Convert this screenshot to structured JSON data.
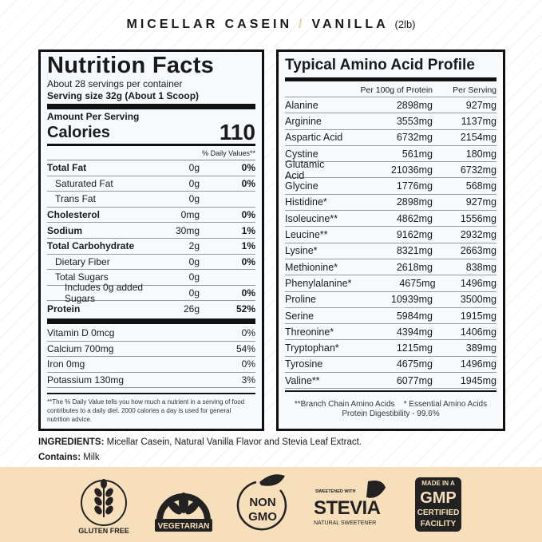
{
  "header": {
    "product": "MICELLAR CASEIN",
    "separator": "/",
    "flavor": "VANILLA",
    "size": "(2lb)"
  },
  "nutrition": {
    "title": "Nutrition Facts",
    "servings": "About 28 servings per container",
    "serving_size": "Serving size 32g (About 1 Scoop)",
    "amount_per_serving": "Amount Per Serving",
    "calories_label": "Calories",
    "calories": "110",
    "dv_header": "% Daily Values**",
    "rows": [
      {
        "name": "Total Fat",
        "amount": "0g",
        "dv": "0%",
        "bold": true
      },
      {
        "name": "Saturated Fat",
        "amount": "0g",
        "dv": "0%",
        "indent": true
      },
      {
        "name": "Trans Fat",
        "amount": "0g",
        "dv": "",
        "indent": true
      },
      {
        "name": "Cholesterol",
        "amount": "0mg",
        "dv": "0%",
        "bold": true
      },
      {
        "name": "Sodium",
        "amount": "30mg",
        "dv": "1%",
        "bold": true
      },
      {
        "name": "Total Carbohydrate",
        "amount": "2g",
        "dv": "1%",
        "bold": true
      },
      {
        "name": "Dietary Fiber",
        "amount": "0g",
        "dv": "0%",
        "indent": true
      },
      {
        "name": "Total Sugars",
        "amount": "0g",
        "dv": "",
        "indent": true
      },
      {
        "name": "Includes 0g added Sugars",
        "amount": "0g",
        "dv": "0%",
        "indent": 2
      },
      {
        "name": "Protein",
        "amount": "26g",
        "dv": "52%",
        "bold": true
      }
    ],
    "vitamins": [
      {
        "name": "Vitamin D 0mcg",
        "dv": "0%"
      },
      {
        "name": "Calcium 700mg",
        "dv": "54%"
      },
      {
        "name": "Iron 0mg",
        "dv": "0%"
      },
      {
        "name": "Potassium 130mg",
        "dv": "3%"
      }
    ],
    "footnote": "**The % Daily Value tells you how much a nutrient in a  serving of food contributes to a daily diet. 2000 calories a day is used for general nutrition advice."
  },
  "amino": {
    "title": "Typical Amino Acid Profile",
    "col1": "Per 100g of Protein",
    "col2": "Per Serving",
    "rows": [
      [
        "Alanine",
        "2898mg",
        "927mg"
      ],
      [
        "Arginine",
        "3553mg",
        "1137mg"
      ],
      [
        "Aspartic Acid",
        "6732mg",
        "2154mg"
      ],
      [
        "Cystine",
        "561mg",
        "180mg"
      ],
      [
        "Glutamic Acid",
        "21036mg",
        "6732mg"
      ],
      [
        "Glycine",
        "1776mg",
        "568mg"
      ],
      [
        "Histidine*",
        "2898mg",
        "927mg"
      ],
      [
        "Isoleucine**",
        "4862mg",
        "1556mg"
      ],
      [
        "Leucine**",
        "9162mg",
        "2932mg"
      ],
      [
        "Lysine*",
        "8321mg",
        "2663mg"
      ],
      [
        "Methionine*",
        "2618mg",
        "838mg"
      ],
      [
        "Phenylalanine*",
        "4675mg",
        "1496mg"
      ],
      [
        "Proline",
        "10939mg",
        "3500mg"
      ],
      [
        "Serine",
        "5984mg",
        "1915mg"
      ],
      [
        "Threonine*",
        "4394mg",
        "1406mg"
      ],
      [
        "Tryptophan*",
        "1215mg",
        "389mg"
      ],
      [
        "Tyrosine",
        "4675mg",
        "1496mg"
      ],
      [
        "Valine**",
        "6077mg",
        "1945mg"
      ]
    ],
    "footnote1": "**Branch Chain Amino Acids    * Essential Amino Acids",
    "footnote2": "Protein Digestibility - 99.6%"
  },
  "ingredients": {
    "label": "INGREDIENTS:",
    "text": " Micellar Casein, Natural Vanilla Flavor and Stevia Leaf Extract.",
    "contains_label": "Contains:",
    "contains": " Milk"
  },
  "badges": {
    "gluten_free": "GLUTEN FREE",
    "vegetarian_top": "VEGETARIAN",
    "vegetarian": "VEGETARIAN",
    "non": "NON",
    "gmo": "GMO",
    "stevia_top": "SWEETENED WITH",
    "stevia": "STEVIA",
    "stevia_bottom": "NATURAL SWEETENER",
    "gmp1": "MADE IN A",
    "gmp2": "GMP",
    "gmp3": "CERTIFIED",
    "gmp4": "FACILITY"
  },
  "colors": {
    "band": "#f8dfbb",
    "ink": "#1a1a1a",
    "separator": "#e8cfa8"
  }
}
